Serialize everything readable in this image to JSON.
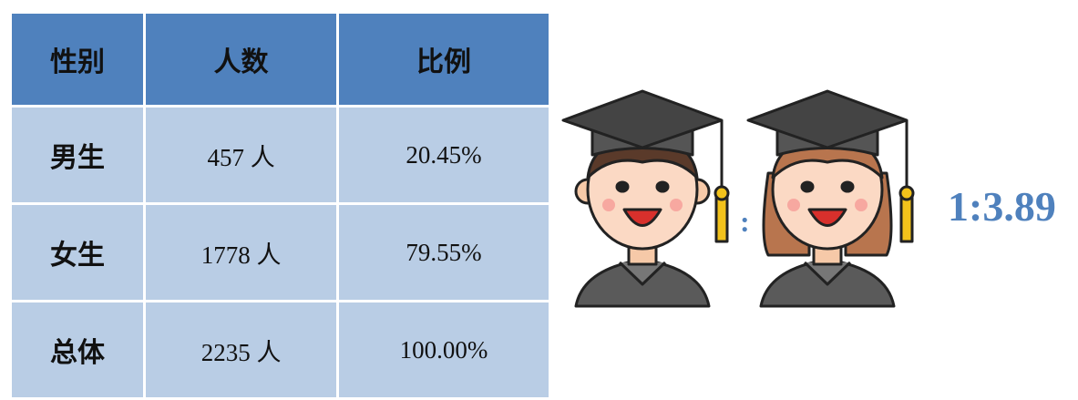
{
  "table": {
    "header": [
      "性别",
      "人数",
      "比例"
    ],
    "rows": [
      [
        "男生",
        "457 人",
        "20.45%"
      ],
      [
        "女生",
        "1778 人",
        "79.55%"
      ],
      [
        "总体",
        "2235 人",
        "100.00%"
      ]
    ]
  },
  "ratio": {
    "separator": ":",
    "value": "1:3.89"
  }
}
